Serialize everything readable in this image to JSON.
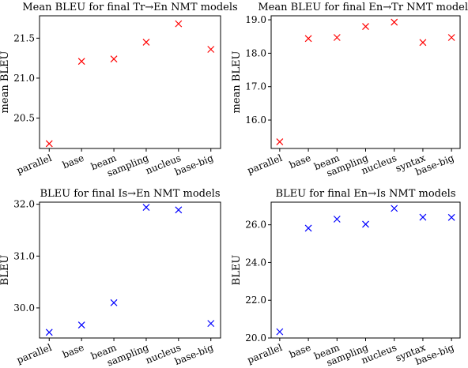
{
  "chart_data": [
    {
      "id": "tr-en",
      "type": "scatter",
      "marker": "x",
      "color": "#ff0000",
      "title": "Mean BLEU for final Tr→En NMT models",
      "ylabel": "mean BLEU",
      "xlabel": "",
      "categories": [
        "parallel",
        "base",
        "beam",
        "sampling",
        "nucleus",
        "base-big"
      ],
      "values": [
        20.18,
        21.21,
        21.24,
        21.45,
        21.68,
        21.36
      ],
      "yticks": [
        "20.5",
        "21.0",
        "21.5"
      ],
      "ylim": [
        20.12,
        21.78
      ],
      "grid": false
    },
    {
      "id": "en-tr",
      "type": "scatter",
      "marker": "x",
      "color": "#ff0000",
      "title": "Mean BLEU for final En→Tr NMT models",
      "ylabel": "mean BLEU",
      "xlabel": "",
      "categories": [
        "parallel",
        "base",
        "beam",
        "sampling",
        "nucleus",
        "syntax",
        "base-big"
      ],
      "values": [
        15.35,
        18.44,
        18.47,
        18.8,
        18.93,
        18.32,
        18.47
      ],
      "yticks": [
        "16.0",
        "17.0",
        "18.0",
        "19.0"
      ],
      "ylim": [
        15.15,
        19.12
      ],
      "grid": false
    },
    {
      "id": "is-en",
      "type": "scatter",
      "marker": "x",
      "color": "#0000ff",
      "title": "BLEU for final Is→En NMT models",
      "ylabel": "BLEU",
      "xlabel": "",
      "categories": [
        "parallel",
        "base",
        "beam",
        "sampling",
        "nucleus",
        "base-big"
      ],
      "values": [
        29.53,
        29.67,
        30.1,
        31.94,
        31.89,
        29.7
      ],
      "yticks": [
        "30.0",
        "31.0",
        "32.0"
      ],
      "ylim": [
        29.42,
        32.04
      ],
      "grid": false
    },
    {
      "id": "en-is",
      "type": "scatter",
      "marker": "x",
      "color": "#0000ff",
      "title": "BLEU for final En→Is NMT models",
      "ylabel": "BLEU",
      "xlabel": "",
      "categories": [
        "parallel",
        "base",
        "beam",
        "sampling",
        "nucleus",
        "syntax",
        "base-big"
      ],
      "values": [
        20.33,
        25.82,
        26.3,
        26.03,
        26.87,
        26.4,
        26.39
      ],
      "yticks": [
        "20.0",
        "22.0",
        "24.0",
        "26.0"
      ],
      "ylim": [
        20.0,
        27.2
      ],
      "grid": false
    }
  ]
}
